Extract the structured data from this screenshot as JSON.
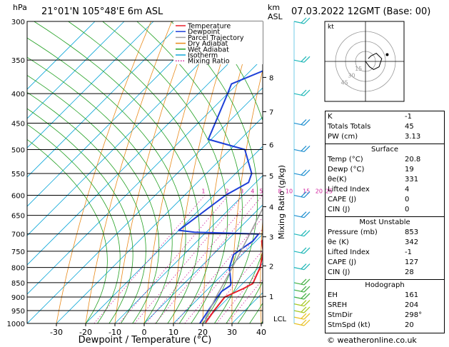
{
  "header": {
    "hpa_label": "hPa",
    "location": "21°01'N  105°48'E  6m  ASL",
    "km_label": "km",
    "asl_label": "ASL",
    "datetime": "07.03.2022  12GMT  (Base: 00)"
  },
  "chart_data": {
    "type": "skew-t log-p",
    "xlabel": "Dewpoint / Temperature (°C)",
    "ylabel_left": "hPa",
    "mixing_ratio_label": "Mixing Ratio (g/kg)",
    "pressure_ticks": [
      300,
      350,
      400,
      450,
      500,
      550,
      600,
      650,
      700,
      750,
      800,
      850,
      900,
      950,
      1000
    ],
    "temperature_ticks": [
      -30,
      -20,
      -10,
      0,
      10,
      20,
      30,
      40
    ],
    "xlim": [
      -40,
      40
    ],
    "ylim": [
      1000,
      300
    ],
    "km_ticks": [
      {
        "label": "1",
        "p": 898
      },
      {
        "label": "2",
        "p": 795
      },
      {
        "label": "3",
        "p": 708
      },
      {
        "label": "4",
        "p": 628
      },
      {
        "label": "5",
        "p": 555
      },
      {
        "label": "6",
        "p": 490
      },
      {
        "label": "7",
        "p": 430
      },
      {
        "label": "8",
        "p": 375
      },
      {
        "label": "LCL",
        "p": 980
      }
    ],
    "mixing_ratio_labels": [
      "1",
      "2",
      "3",
      "4",
      "5",
      "8",
      "10",
      "15",
      "20",
      "25"
    ],
    "legend": [
      {
        "name": "Temperature",
        "color": "#e8202a"
      },
      {
        "name": "Dewpoint",
        "color": "#1d3fd8"
      },
      {
        "name": "Parcel Trajectory",
        "color": "#a0a0a0"
      },
      {
        "name": "Dry Adiabat",
        "color": "#e88a1a"
      },
      {
        "name": "Wet Adiabat",
        "color": "#22a022"
      },
      {
        "name": "Isotherm",
        "color": "#10a8d8"
      },
      {
        "name": "Mixing Ratio",
        "color": "#d0209c"
      }
    ],
    "series": [
      {
        "name": "Temperature",
        "color": "#e8202a",
        "points": [
          {
            "p": 1000,
            "t": 20.8
          },
          {
            "p": 950,
            "t": 19.5
          },
          {
            "p": 900,
            "t": 18.5
          },
          {
            "p": 870,
            "t": 22.0
          },
          {
            "p": 853,
            "t": 23.5
          },
          {
            "p": 800,
            "t": 20.5
          },
          {
            "p": 750,
            "t": 16.0
          },
          {
            "p": 720,
            "t": 12.0
          },
          {
            "p": 700,
            "t": 12.5
          },
          {
            "p": 650,
            "t": 8.0
          },
          {
            "p": 600,
            "t": 3.0
          },
          {
            "p": 550,
            "t": -1.5
          },
          {
            "p": 500,
            "t": -6.5
          },
          {
            "p": 480,
            "t": -7.0
          },
          {
            "p": 460,
            "t": -8.5
          },
          {
            "p": 430,
            "t": -12.5
          },
          {
            "p": 400,
            "t": -17.5
          },
          {
            "p": 380,
            "t": -20.0
          },
          {
            "p": 370,
            "t": -22.0
          }
        ]
      },
      {
        "name": "Dewpoint",
        "color": "#1d3fd8",
        "points": [
          {
            "p": 1000,
            "t": 19.0
          },
          {
            "p": 950,
            "t": 17.5
          },
          {
            "p": 900,
            "t": 16.0
          },
          {
            "p": 880,
            "t": 15.5
          },
          {
            "p": 860,
            "t": 16.5
          },
          {
            "p": 853,
            "t": 16.0
          },
          {
            "p": 800,
            "t": 10.0
          },
          {
            "p": 760,
            "t": 7.0
          },
          {
            "p": 720,
            "t": 9.0
          },
          {
            "p": 700,
            "t": 8.5
          },
          {
            "p": 695,
            "t": -14.0
          },
          {
            "p": 690,
            "t": -20.0
          },
          {
            "p": 600,
            "t": -16.0
          },
          {
            "p": 570,
            "t": -12.5
          },
          {
            "p": 550,
            "t": -14.5
          },
          {
            "p": 500,
            "t": -25.0
          },
          {
            "p": 480,
            "t": -41.0
          },
          {
            "p": 400,
            "t": -50.0
          },
          {
            "p": 385,
            "t": -52.0
          },
          {
            "p": 340,
            "t": -37.0
          },
          {
            "p": 300,
            "t": -44.0
          }
        ]
      },
      {
        "name": "Parcel Trajectory",
        "color": "#a0a0a0",
        "points": [
          {
            "p": 1000,
            "t": 20.8
          },
          {
            "p": 980,
            "t": 19.2
          },
          {
            "p": 900,
            "t": 15.5
          },
          {
            "p": 853,
            "t": 13.5
          },
          {
            "p": 800,
            "t": 11.0
          },
          {
            "p": 700,
            "t": 5.5
          },
          {
            "p": 600,
            "t": -1.0
          },
          {
            "p": 500,
            "t": -9.5
          },
          {
            "p": 400,
            "t": -21.5
          },
          {
            "p": 300,
            "t": -40.0
          }
        ]
      }
    ],
    "wind_barbs": [
      {
        "p": 1000,
        "color": "#e8c020"
      },
      {
        "p": 975,
        "color": "#e8c020"
      },
      {
        "p": 950,
        "color": "#a8c820"
      },
      {
        "p": 925,
        "color": "#a8c820"
      },
      {
        "p": 900,
        "color": "#40b040"
      },
      {
        "p": 875,
        "color": "#40b040"
      },
      {
        "p": 850,
        "color": "#40b040"
      },
      {
        "p": 800,
        "color": "#20b8b8"
      },
      {
        "p": 750,
        "color": "#20b8b8"
      },
      {
        "p": 700,
        "color": "#20b8b8"
      },
      {
        "p": 650,
        "color": "#2090d0"
      },
      {
        "p": 600,
        "color": "#2090d0"
      },
      {
        "p": 550,
        "color": "#2090d0"
      },
      {
        "p": 500,
        "color": "#2090d0"
      },
      {
        "p": 450,
        "color": "#2090d0"
      },
      {
        "p": 400,
        "color": "#20b8b8"
      },
      {
        "p": 350,
        "color": "#20b8b8"
      },
      {
        "p": 300,
        "color": "#20b8b8"
      }
    ]
  },
  "hodograph": {
    "title": "kt",
    "ring_labels": [
      "15",
      "30",
      "45"
    ],
    "trace": [
      [
        0,
        0
      ],
      [
        3,
        -4
      ],
      [
        6,
        -6
      ],
      [
        10,
        -4
      ],
      [
        12,
        2
      ],
      [
        8,
        6
      ],
      [
        4,
        4
      ],
      [
        2,
        2
      ]
    ],
    "storm_motion": [
      16,
      5
    ]
  },
  "indices": {
    "basic": [
      {
        "label": "K",
        "value": "-1"
      },
      {
        "label": "Totals Totals",
        "value": "45"
      },
      {
        "label": "PW (cm)",
        "value": "3.13"
      }
    ],
    "surface_title": "Surface",
    "surface": [
      {
        "label": "Temp (°C)",
        "value": "20.8"
      },
      {
        "label": "Dewp (°C)",
        "value": "19"
      },
      {
        "label": "θe(K)",
        "value": "331"
      },
      {
        "label": "Lifted Index",
        "value": "4"
      },
      {
        "label": "CAPE (J)",
        "value": "0"
      },
      {
        "label": "CIN (J)",
        "value": "0"
      }
    ],
    "unstable_title": "Most Unstable",
    "unstable": [
      {
        "label": "Pressure (mb)",
        "value": "853"
      },
      {
        "label": "θe (K)",
        "value": "342"
      },
      {
        "label": "Lifted Index",
        "value": "-1"
      },
      {
        "label": "CAPE (J)",
        "value": "127"
      },
      {
        "label": "CIN (J)",
        "value": "28"
      }
    ],
    "hodo_title": "Hodograph",
    "hodo": [
      {
        "label": "EH",
        "value": "161"
      },
      {
        "label": "SREH",
        "value": "204"
      },
      {
        "label": "StmDir",
        "value": "298°"
      },
      {
        "label": "StmSpd (kt)",
        "value": "20"
      }
    ]
  },
  "credit": "© weatheronline.co.uk"
}
